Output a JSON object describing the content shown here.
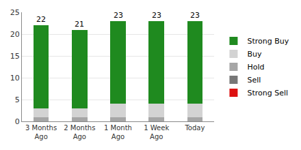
{
  "chart_data": {
    "type": "bar",
    "stacked": true,
    "categories": [
      "3 Months Ago",
      "2 Months Ago",
      "1 Month Ago",
      "1 Week Ago",
      "Today"
    ],
    "series": [
      {
        "name": "Strong Sell",
        "color": "#dd1111",
        "values": [
          0,
          0,
          0,
          0,
          0
        ]
      },
      {
        "name": "Sell",
        "color": "#777777",
        "values": [
          0,
          0,
          0,
          0,
          0
        ]
      },
      {
        "name": "Hold",
        "color": "#a6a6a6",
        "values": [
          1,
          1,
          1,
          1,
          1
        ]
      },
      {
        "name": "Buy",
        "color": "#d3d3d3",
        "values": [
          2,
          2,
          3,
          3,
          3
        ]
      },
      {
        "name": "Strong Buy",
        "color": "#1f8a1f",
        "values": [
          19,
          18,
          19,
          19,
          19
        ]
      }
    ],
    "totals": [
      22,
      21,
      23,
      23,
      23
    ],
    "ylim": [
      0,
      25
    ],
    "yticks": [
      0,
      5,
      10,
      15,
      20,
      25
    ],
    "grid": true,
    "legend": "right"
  }
}
